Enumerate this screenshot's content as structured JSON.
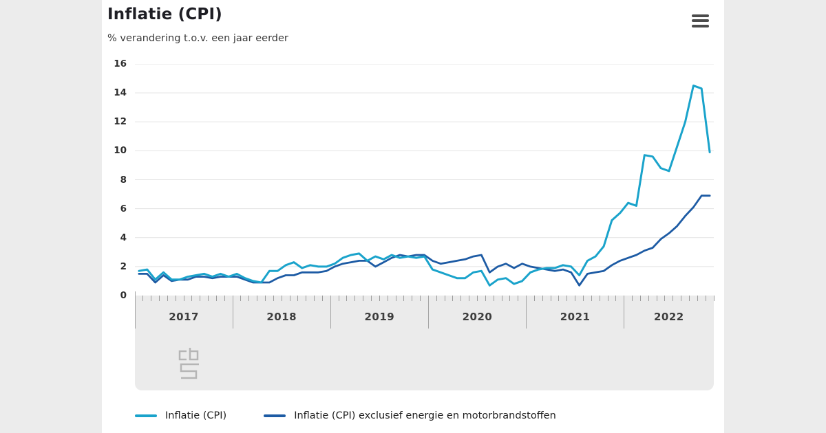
{
  "header": {
    "title": "Inflatie (CPI)",
    "subtitle": "% verandering t.o.v. een jaar eerder"
  },
  "menu": {
    "icon": "hamburger-icon"
  },
  "branding": {
    "logo": "cbs-logo"
  },
  "chart_data": {
    "type": "line",
    "title": "Inflatie (CPI)",
    "ylabel": "% verandering t.o.v. een jaar eerder",
    "ylim": [
      0,
      16
    ],
    "yticks": [
      0,
      2,
      4,
      6,
      8,
      10,
      12,
      14,
      16
    ],
    "grid": true,
    "legend_position": "bottom",
    "x_unit": "month",
    "x_years": [
      "2017",
      "2018",
      "2019",
      "2020",
      "2021",
      "2022"
    ],
    "x_range": "jan 2017 - nov 2022",
    "series": [
      {
        "name": "Inflatie (CPI)",
        "color": "#1aa3cb",
        "values": [
          1.7,
          1.8,
          1.1,
          1.6,
          1.1,
          1.1,
          1.3,
          1.4,
          1.5,
          1.3,
          1.5,
          1.3,
          1.5,
          1.2,
          1.0,
          0.9,
          1.7,
          1.7,
          2.1,
          2.3,
          1.9,
          2.1,
          2.0,
          2.0,
          2.2,
          2.6,
          2.8,
          2.9,
          2.4,
          2.7,
          2.5,
          2.8,
          2.6,
          2.7,
          2.6,
          2.7,
          1.8,
          1.6,
          1.4,
          1.2,
          1.2,
          1.6,
          1.7,
          0.7,
          1.1,
          1.2,
          0.8,
          1.0,
          1.6,
          1.8,
          1.9,
          1.9,
          2.1,
          2.0,
          1.4,
          2.4,
          2.7,
          3.4,
          5.2,
          5.7,
          6.4,
          6.2,
          9.7,
          9.6,
          8.8,
          8.6,
          10.3,
          12.0,
          14.5,
          14.3,
          9.9
        ]
      },
      {
        "name": "Inflatie (CPI) exclusief energie en motorbrandstoffen",
        "color": "#1d5ba4",
        "values": [
          1.5,
          1.5,
          0.9,
          1.4,
          1.0,
          1.1,
          1.1,
          1.3,
          1.3,
          1.2,
          1.3,
          1.3,
          1.3,
          1.1,
          0.9,
          0.9,
          0.9,
          1.2,
          1.4,
          1.4,
          1.6,
          1.6,
          1.6,
          1.7,
          2.0,
          2.2,
          2.3,
          2.4,
          2.4,
          2.0,
          2.3,
          2.6,
          2.8,
          2.7,
          2.8,
          2.8,
          2.4,
          2.2,
          2.3,
          2.4,
          2.5,
          2.7,
          2.8,
          1.6,
          2.0,
          2.2,
          1.9,
          2.2,
          2.0,
          1.9,
          1.8,
          1.7,
          1.8,
          1.6,
          0.7,
          1.5,
          1.6,
          1.7,
          2.1,
          2.4,
          2.6,
          2.8,
          3.1,
          3.3,
          3.9,
          4.3,
          4.8,
          5.5,
          6.1,
          6.9,
          6.9
        ]
      }
    ]
  },
  "colors": {
    "background": "#ececec",
    "card": "#ffffff",
    "gridline": "#e2e2e2",
    "axis_panel": "#ebebeb",
    "tick": "#9c9c9c"
  }
}
